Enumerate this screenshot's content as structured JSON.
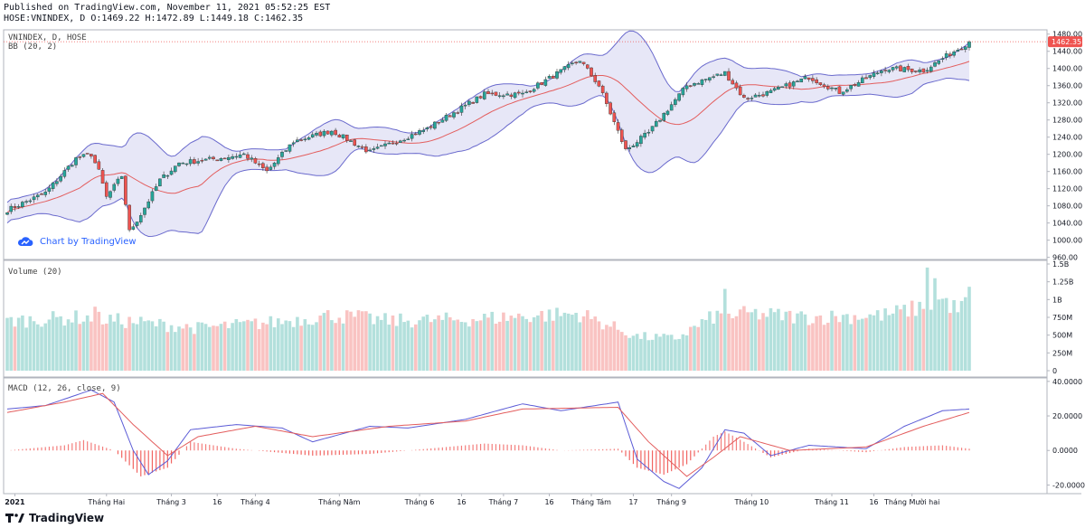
{
  "header": {
    "line1": "Published on TradingView.com, November 11, 2021 05:52:25 EST",
    "line2": "HOSE:VNINDEX, D O:1469.22 H:1472.89 L:1449.18 C:1462.35"
  },
  "footer": {
    "brand": "TradingView"
  },
  "watermark": {
    "label": "Chart by TradingView"
  },
  "colors": {
    "up": "#26a69a",
    "down": "#ef5350",
    "band": "#6a6acd",
    "basis": "#e35d5d",
    "macd": "#5b5bd6",
    "signal": "#e35d5d"
  },
  "chart_data": [
    {
      "type": "candlestick",
      "title": "VNINDEX, D, HOSE",
      "indicator": "BB (20, 2)",
      "last_price": 1462.35,
      "last_price_label": "1462.35",
      "ylim": [
        955,
        1490
      ],
      "y_ticks": [
        "1480.00",
        "1440.00",
        "1400.00",
        "1360.00",
        "1320.00",
        "1280.00",
        "1240.00",
        "1200.00",
        "1160.00",
        "1120.00",
        "1080.00",
        "1040.00",
        "1000.00",
        "960.00"
      ],
      "close_keypoints": [
        [
          0,
          1070
        ],
        [
          10,
          1110
        ],
        [
          18,
          1190
        ],
        [
          22,
          1200
        ],
        [
          24,
          1160
        ],
        [
          26,
          1100
        ],
        [
          30,
          1150
        ],
        [
          32,
          1020
        ],
        [
          35,
          1060
        ],
        [
          40,
          1140
        ],
        [
          45,
          1180
        ],
        [
          55,
          1190
        ],
        [
          62,
          1200
        ],
        [
          68,
          1160
        ],
        [
          75,
          1230
        ],
        [
          85,
          1255
        ],
        [
          95,
          1205
        ],
        [
          110,
          1260
        ],
        [
          125,
          1340
        ],
        [
          135,
          1340
        ],
        [
          150,
          1420
        ],
        [
          155,
          1360
        ],
        [
          162,
          1210
        ],
        [
          168,
          1250
        ],
        [
          178,
          1360
        ],
        [
          188,
          1390
        ],
        [
          193,
          1330
        ],
        [
          200,
          1345
        ],
        [
          210,
          1380
        ],
        [
          218,
          1345
        ],
        [
          230,
          1400
        ],
        [
          240,
          1395
        ],
        [
          248,
          1440
        ],
        [
          252,
          1462
        ]
      ],
      "n_bars": 253
    },
    {
      "type": "bar",
      "title": "Volume (20)",
      "ylim": [
        0,
        1500
      ],
      "y_ticks": [
        "1.5B",
        "1.25B",
        "1B",
        "750M",
        "500M",
        "250M",
        "0"
      ],
      "volume_keypoints": [
        [
          0,
          700
        ],
        [
          20,
          750
        ],
        [
          30,
          700
        ],
        [
          50,
          600
        ],
        [
          70,
          680
        ],
        [
          85,
          780
        ],
        [
          100,
          700
        ],
        [
          120,
          720
        ],
        [
          140,
          780
        ],
        [
          150,
          800
        ],
        [
          165,
          480
        ],
        [
          175,
          450
        ],
        [
          185,
          760
        ],
        [
          195,
          800
        ],
        [
          210,
          750
        ],
        [
          230,
          780
        ],
        [
          240,
          900
        ],
        [
          245,
          1000
        ],
        [
          249,
          850
        ],
        [
          252,
          1000
        ]
      ],
      "volume_spikes": [
        [
          23,
          900
        ],
        [
          92,
          850
        ],
        [
          188,
          1150
        ],
        [
          241,
          1450
        ],
        [
          243,
          1300
        ],
        [
          252,
          1180
        ]
      ]
    },
    {
      "type": "line",
      "title": "MACD (12, 26, close, 9)",
      "ylim": [
        -25,
        42
      ],
      "y_ticks": [
        "40.0000",
        "20.0000",
        "0.0000",
        "-20.0000"
      ],
      "series": [
        {
          "name": "MACD",
          "keypoints": [
            [
              0,
              24
            ],
            [
              10,
              26
            ],
            [
              22,
              35
            ],
            [
              28,
              28
            ],
            [
              33,
              0
            ],
            [
              37,
              -14
            ],
            [
              42,
              -6
            ],
            [
              48,
              12
            ],
            [
              60,
              15
            ],
            [
              72,
              13
            ],
            [
              80,
              5
            ],
            [
              95,
              14
            ],
            [
              105,
              13
            ],
            [
              120,
              18
            ],
            [
              130,
              24
            ],
            [
              135,
              27
            ],
            [
              145,
              23
            ],
            [
              160,
              28
            ],
            [
              165,
              -5
            ],
            [
              172,
              -18
            ],
            [
              176,
              -22
            ],
            [
              182,
              -10
            ],
            [
              188,
              12
            ],
            [
              193,
              10
            ],
            [
              200,
              -3
            ],
            [
              210,
              3
            ],
            [
              225,
              1
            ],
            [
              235,
              14
            ],
            [
              245,
              23
            ],
            [
              252,
              24
            ]
          ]
        },
        {
          "name": "Signal",
          "keypoints": [
            [
              0,
              22
            ],
            [
              15,
              28
            ],
            [
              25,
              33
            ],
            [
              33,
              15
            ],
            [
              42,
              -3
            ],
            [
              50,
              8
            ],
            [
              65,
              14
            ],
            [
              80,
              8
            ],
            [
              100,
              14
            ],
            [
              120,
              17
            ],
            [
              135,
              24
            ],
            [
              160,
              25
            ],
            [
              168,
              5
            ],
            [
              178,
              -15
            ],
            [
              185,
              -4
            ],
            [
              192,
              8
            ],
            [
              205,
              0
            ],
            [
              225,
              2
            ],
            [
              240,
              14
            ],
            [
              252,
              22
            ]
          ]
        }
      ],
      "histogram_keypoints": [
        [
          0,
          0
        ],
        [
          15,
          3
        ],
        [
          20,
          6
        ],
        [
          28,
          0
        ],
        [
          35,
          -15
        ],
        [
          42,
          -10
        ],
        [
          48,
          5
        ],
        [
          60,
          1
        ],
        [
          80,
          -3
        ],
        [
          95,
          -2
        ],
        [
          110,
          1
        ],
        [
          125,
          4
        ],
        [
          135,
          3
        ],
        [
          145,
          0
        ],
        [
          160,
          1
        ],
        [
          165,
          -10
        ],
        [
          172,
          -14
        ],
        [
          178,
          -8
        ],
        [
          185,
          8
        ],
        [
          188,
          11
        ],
        [
          193,
          5
        ],
        [
          200,
          -4
        ],
        [
          210,
          1
        ],
        [
          225,
          -1
        ],
        [
          235,
          2
        ],
        [
          245,
          3
        ],
        [
          252,
          1
        ]
      ]
    }
  ],
  "x_axis": {
    "labels": [
      {
        "text": "2021",
        "bar": 2,
        "bold": true
      },
      {
        "text": "Tháng Hai",
        "bar": 26
      },
      {
        "text": "Tháng 3",
        "bar": 43
      },
      {
        "text": "16",
        "bar": 55
      },
      {
        "text": "Tháng 4",
        "bar": 65
      },
      {
        "text": "Tháng Năm",
        "bar": 87
      },
      {
        "text": "Tháng 6",
        "bar": 108
      },
      {
        "text": "16",
        "bar": 119
      },
      {
        "text": "Tháng 7",
        "bar": 130
      },
      {
        "text": "16",
        "bar": 142
      },
      {
        "text": "Tháng Tám",
        "bar": 153
      },
      {
        "text": "17",
        "bar": 164
      },
      {
        "text": "Tháng 9",
        "bar": 174
      },
      {
        "text": "Tháng 10",
        "bar": 195
      },
      {
        "text": "Tháng 11",
        "bar": 216
      },
      {
        "text": "16",
        "bar": 227
      },
      {
        "text": "Tháng Mười hai",
        "bar": 237
      }
    ]
  }
}
